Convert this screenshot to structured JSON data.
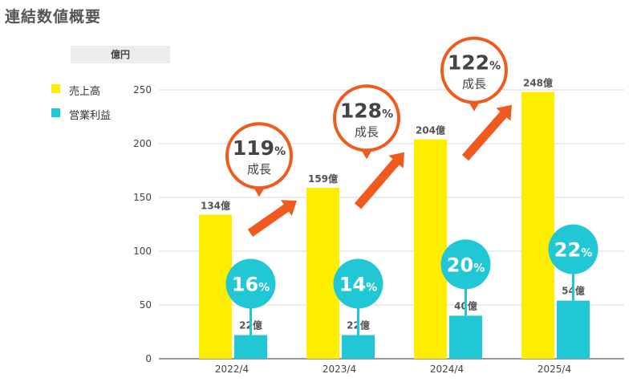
{
  "title": "連結数値概要",
  "unit": "億円",
  "colors": {
    "sales": "#fdee00",
    "profit": "#22c7d6",
    "arrow": "#f15a1f",
    "bubble_ring": "#f15a1f",
    "grid": "#d9d9d9",
    "label": "#555555"
  },
  "legend": [
    {
      "label": "売上高",
      "color_key": "sales"
    },
    {
      "label": "営業利益",
      "color_key": "profit"
    }
  ],
  "chart_data": {
    "type": "bar",
    "categories": [
      "2022/4",
      "2023/4",
      "2024/4",
      "2025/4"
    ],
    "series": [
      {
        "name": "売上高",
        "values": [
          134,
          159,
          204,
          248
        ],
        "labels": [
          "134億",
          "159億",
          "204億",
          "248億"
        ]
      },
      {
        "name": "営業利益",
        "values": [
          22,
          22,
          40,
          54
        ],
        "labels": [
          "22億",
          "22億",
          "40億",
          "54億"
        ]
      }
    ],
    "ylim": [
      0,
      250
    ],
    "yticks": [
      0,
      50,
      100,
      150,
      200,
      250
    ],
    "grid": true,
    "growth": [
      {
        "value": "119",
        "unit": "%",
        "text": "成長"
      },
      {
        "value": "128",
        "unit": "%",
        "text": "成長"
      },
      {
        "value": "122",
        "unit": "%",
        "text": "成長"
      }
    ],
    "margins": [
      {
        "value": "16",
        "unit": "%"
      },
      {
        "value": "14",
        "unit": "%"
      },
      {
        "value": "20",
        "unit": "%"
      },
      {
        "value": "22",
        "unit": "%"
      }
    ]
  }
}
